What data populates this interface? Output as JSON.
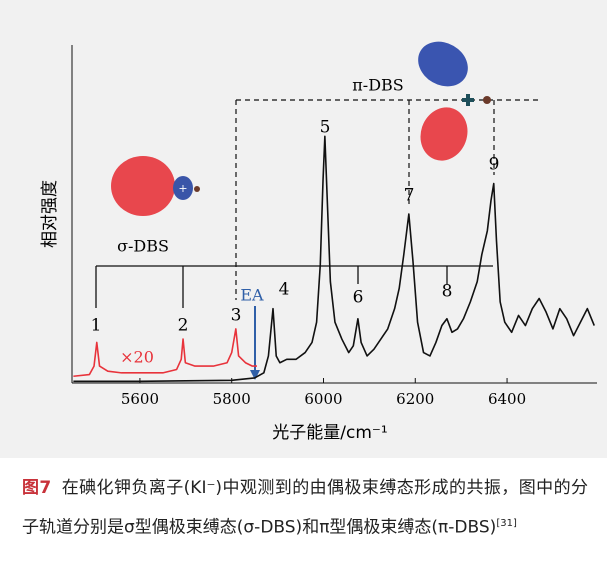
{
  "chart_data": {
    "type": "line",
    "y_axis_label": "相对强度",
    "x_axis_label": "光子能量/cm⁻¹",
    "xlim": [
      5452,
      6596
    ],
    "xticks": [
      5600,
      5800,
      6000,
      6200,
      6400
    ],
    "ylim": [
      0,
      100
    ],
    "series": [
      {
        "name": "×20",
        "color": "#e8333b",
        "x": [
          5455,
          5490,
          5500,
          5506,
          5512,
          5530,
          5560,
          5600,
          5650,
          5680,
          5690,
          5694,
          5699,
          5720,
          5760,
          5790,
          5800,
          5809,
          5815,
          5830,
          5845,
          5855
        ],
        "values": [
          2,
          2.5,
          5,
          12,
          5,
          3.5,
          3,
          3,
          3,
          4,
          7,
          13,
          6,
          5,
          5,
          6,
          9,
          16,
          8,
          6,
          5,
          5
        ]
      },
      {
        "color": "#111111",
        "x": [
          5455,
          5600,
          5800,
          5850,
          5870,
          5880,
          5890,
          5897,
          5905,
          5920,
          5940,
          5960,
          5975,
          5985,
          5993,
          5999,
          6003,
          6008,
          6015,
          6025,
          6040,
          6055,
          6065,
          6075,
          6082,
          6095,
          6110,
          6125,
          6140,
          6155,
          6165,
          6175,
          6186,
          6195,
          6205,
          6218,
          6232,
          6245,
          6258,
          6269,
          6280,
          6292,
          6305,
          6320,
          6335,
          6345,
          6357,
          6365,
          6371,
          6377,
          6385,
          6395,
          6410,
          6425,
          6440,
          6455,
          6470,
          6485,
          6500,
          6515,
          6530,
          6545,
          6560,
          6575,
          6590
        ],
        "values": [
          0.5,
          0.5,
          0.8,
          1.5,
          3,
          8,
          22,
          8,
          6,
          7,
          7,
          9,
          12,
          18,
          35,
          60,
          73,
          55,
          30,
          18,
          13,
          9,
          11,
          19,
          12,
          8,
          10,
          13,
          16,
          22,
          28,
          38,
          50,
          36,
          18,
          9,
          8,
          12,
          17,
          19,
          15,
          16,
          19,
          24,
          30,
          38,
          45,
          54,
          59,
          42,
          24,
          18,
          15,
          20,
          17,
          22,
          25,
          21,
          16,
          22,
          19,
          14,
          18,
          22,
          17
        ]
      }
    ],
    "peak_labels": [
      "1",
      "2",
      "3",
      "4",
      "5",
      "6",
      "7",
      "8",
      "9"
    ],
    "annotations": {
      "sigma": "σ-DBS",
      "pi": "π-DBS",
      "ea": "EA"
    },
    "caption": {
      "label": "图7",
      "text": "在碘化钾负离子(KI⁻)中观测到的由偶极束缚态形成的共振，图中的分子轨道分别是σ型偶极束缚态(σ-DBS)和π型偶极束缚态(π-DBS)",
      "ref": "[31]"
    }
  }
}
